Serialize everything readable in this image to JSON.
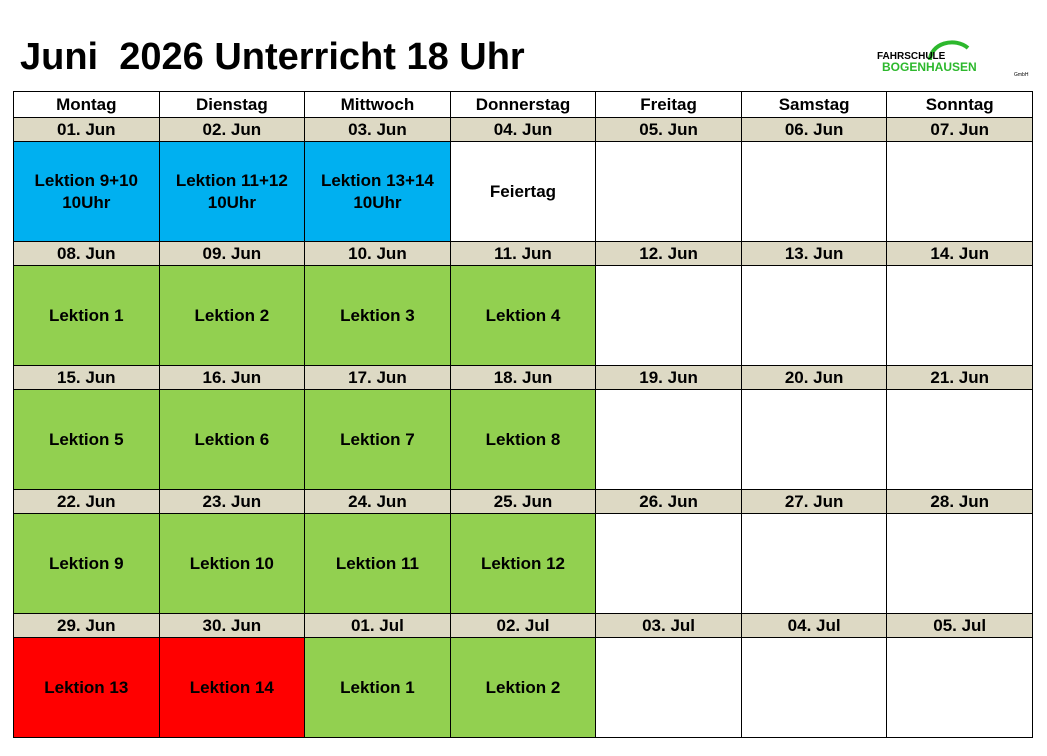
{
  "header": {
    "title": "Juni  2026 Unterricht 18 Uhr",
    "logo": {
      "line1": "FAHRSCHULE",
      "line2": "BOGENHAUSEN",
      "line3": "GmbH"
    }
  },
  "days": [
    "Montag",
    "Dienstag",
    "Mittwoch",
    "Donnerstag",
    "Freitag",
    "Samstag",
    "Sonntag"
  ],
  "weeks": [
    {
      "dates": [
        "01. Jun",
        "02. Jun",
        "03. Jun",
        "04. Jun",
        "05. Jun",
        "06. Jun",
        "07. Jun"
      ],
      "cells": [
        {
          "lines": [
            "Lektion 9+10",
            "10Uhr"
          ],
          "color": "#00b0f0"
        },
        {
          "lines": [
            "Lektion 11+12",
            "10Uhr"
          ],
          "color": "#00b0f0"
        },
        {
          "lines": [
            "Lektion 13+14",
            "10Uhr"
          ],
          "color": "#00b0f0"
        },
        {
          "lines": [
            "Feiertag"
          ],
          "color": "#ffffff"
        },
        {
          "lines": [],
          "color": "#ffffff"
        },
        {
          "lines": [],
          "color": "#ffffff"
        },
        {
          "lines": [],
          "color": "#ffffff"
        }
      ]
    },
    {
      "dates": [
        "08. Jun",
        "09. Jun",
        "10. Jun",
        "11. Jun",
        "12. Jun",
        "13. Jun",
        "14. Jun"
      ],
      "cells": [
        {
          "lines": [
            "Lektion 1"
          ],
          "color": "#92d050"
        },
        {
          "lines": [
            "Lektion 2"
          ],
          "color": "#92d050"
        },
        {
          "lines": [
            "Lektion 3"
          ],
          "color": "#92d050"
        },
        {
          "lines": [
            "Lektion 4"
          ],
          "color": "#92d050"
        },
        {
          "lines": [],
          "color": "#ffffff"
        },
        {
          "lines": [],
          "color": "#ffffff"
        },
        {
          "lines": [],
          "color": "#ffffff"
        }
      ]
    },
    {
      "dates": [
        "15. Jun",
        "16. Jun",
        "17. Jun",
        "18. Jun",
        "19. Jun",
        "20. Jun",
        "21. Jun"
      ],
      "cells": [
        {
          "lines": [
            "Lektion 5"
          ],
          "color": "#92d050"
        },
        {
          "lines": [
            "Lektion 6"
          ],
          "color": "#92d050"
        },
        {
          "lines": [
            "Lektion 7"
          ],
          "color": "#92d050"
        },
        {
          "lines": [
            "Lektion 8"
          ],
          "color": "#92d050"
        },
        {
          "lines": [],
          "color": "#ffffff"
        },
        {
          "lines": [],
          "color": "#ffffff"
        },
        {
          "lines": [],
          "color": "#ffffff"
        }
      ]
    },
    {
      "dates": [
        "22. Jun",
        "23. Jun",
        "24. Jun",
        "25. Jun",
        "26. Jun",
        "27. Jun",
        "28. Jun"
      ],
      "cells": [
        {
          "lines": [
            "Lektion 9"
          ],
          "color": "#92d050"
        },
        {
          "lines": [
            "Lektion 10"
          ],
          "color": "#92d050"
        },
        {
          "lines": [
            "Lektion 11"
          ],
          "color": "#92d050"
        },
        {
          "lines": [
            "Lektion 12"
          ],
          "color": "#92d050"
        },
        {
          "lines": [],
          "color": "#ffffff"
        },
        {
          "lines": [],
          "color": "#ffffff"
        },
        {
          "lines": [],
          "color": "#ffffff"
        }
      ]
    },
    {
      "dates": [
        "29. Jun",
        "30. Jun",
        "01. Jul",
        "02. Jul",
        "03. Jul",
        "04. Jul",
        "05. Jul"
      ],
      "cells": [
        {
          "lines": [
            "Lektion 13"
          ],
          "color": "#ff0000"
        },
        {
          "lines": [
            "Lektion 14"
          ],
          "color": "#ff0000"
        },
        {
          "lines": [
            "Lektion 1"
          ],
          "color": "#92d050"
        },
        {
          "lines": [
            "Lektion 2"
          ],
          "color": "#92d050"
        },
        {
          "lines": [],
          "color": "#ffffff"
        },
        {
          "lines": [],
          "color": "#ffffff"
        },
        {
          "lines": [],
          "color": "#ffffff"
        }
      ]
    }
  ]
}
